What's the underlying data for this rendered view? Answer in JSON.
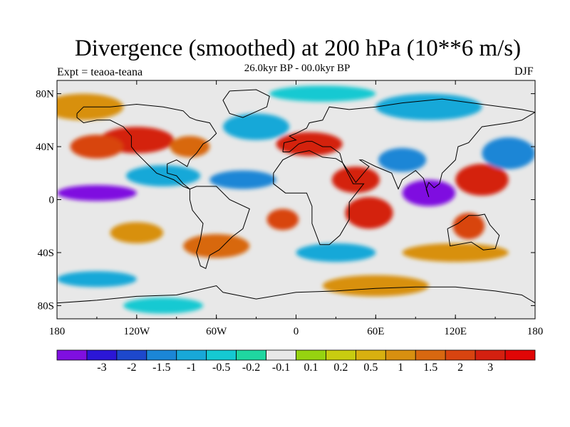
{
  "title": "Divergence (smoothed) at 200 hPa (10**6 m/s)",
  "subtitle": "26.0kyr BP - 00.0kyr BP",
  "left_label": "Expt = teaoa-teana",
  "right_label": "DJF",
  "map": {
    "lon_range": [
      -180,
      180
    ],
    "lat_range": [
      -90,
      90
    ],
    "x_ticks": [
      {
        "lon": -180,
        "label": "180"
      },
      {
        "lon": -120,
        "label": "120W"
      },
      {
        "lon": -60,
        "label": "60W"
      },
      {
        "lon": 0,
        "label": "0"
      },
      {
        "lon": 60,
        "label": "60E"
      },
      {
        "lon": 120,
        "label": "120E"
      },
      {
        "lon": 180,
        "label": "180"
      }
    ],
    "y_ticks": [
      {
        "lat": 80,
        "label": "80N"
      },
      {
        "lat": 40,
        "label": "40N"
      },
      {
        "lat": 0,
        "label": "0"
      },
      {
        "lat": -40,
        "label": "40S"
      },
      {
        "lat": -80,
        "label": "80S"
      }
    ]
  },
  "colorbar": {
    "colors": [
      "#7f0fe0",
      "#2b16d6",
      "#1d48cc",
      "#1b86d6",
      "#18a8d8",
      "#15c9d2",
      "#1fd6a0",
      "#e8e8e8",
      "#96d310",
      "#c8cc10",
      "#d8b010",
      "#d89010",
      "#d86810",
      "#d84410",
      "#d42010",
      "#e00606"
    ],
    "labels": [
      "-3",
      "-2",
      "-1.5",
      "-1",
      "-0.5",
      "-0.2",
      "-0.1",
      "0.1",
      "0.2",
      "0.5",
      "1",
      "1.5",
      "2",
      "3"
    ]
  },
  "blobs": [
    {
      "lon": -120,
      "lat": 45,
      "rx": 28,
      "ry": 10,
      "c": 14
    },
    {
      "lon": -150,
      "lat": 40,
      "rx": 20,
      "ry": 9,
      "c": 13
    },
    {
      "lon": -80,
      "lat": 40,
      "rx": 15,
      "ry": 8,
      "c": 12
    },
    {
      "lon": 10,
      "lat": 42,
      "rx": 25,
      "ry": 9,
      "c": 14
    },
    {
      "lon": -30,
      "lat": 55,
      "rx": 25,
      "ry": 10,
      "c": 4
    },
    {
      "lon": -150,
      "lat": 5,
      "rx": 30,
      "ry": 6,
      "c": 0
    },
    {
      "lon": -100,
      "lat": 18,
      "rx": 28,
      "ry": 8,
      "c": 4
    },
    {
      "lon": -40,
      "lat": 15,
      "rx": 25,
      "ry": 7,
      "c": 3
    },
    {
      "lon": -120,
      "lat": -25,
      "rx": 20,
      "ry": 8,
      "c": 11
    },
    {
      "lon": -10,
      "lat": -15,
      "rx": 12,
      "ry": 8,
      "c": 13
    },
    {
      "lon": 45,
      "lat": 15,
      "rx": 18,
      "ry": 10,
      "c": 14
    },
    {
      "lon": 55,
      "lat": -10,
      "rx": 18,
      "ry": 12,
      "c": 14
    },
    {
      "lon": 100,
      "lat": 5,
      "rx": 20,
      "ry": 10,
      "c": 0
    },
    {
      "lon": 140,
      "lat": 15,
      "rx": 20,
      "ry": 12,
      "c": 14
    },
    {
      "lon": 80,
      "lat": 30,
      "rx": 18,
      "ry": 9,
      "c": 3
    },
    {
      "lon": 130,
      "lat": -20,
      "rx": 12,
      "ry": 10,
      "c": 13
    },
    {
      "lon": 160,
      "lat": 35,
      "rx": 20,
      "ry": 12,
      "c": 3
    },
    {
      "lon": -60,
      "lat": -35,
      "rx": 25,
      "ry": 9,
      "c": 12
    },
    {
      "lon": 30,
      "lat": -40,
      "rx": 30,
      "ry": 7,
      "c": 4
    },
    {
      "lon": 120,
      "lat": -40,
      "rx": 40,
      "ry": 7,
      "c": 11
    },
    {
      "lon": -150,
      "lat": -60,
      "rx": 30,
      "ry": 6,
      "c": 4
    },
    {
      "lon": 60,
      "lat": -65,
      "rx": 40,
      "ry": 8,
      "c": 11
    },
    {
      "lon": -100,
      "lat": -80,
      "rx": 30,
      "ry": 6,
      "c": 5
    },
    {
      "lon": 100,
      "lat": 70,
      "rx": 40,
      "ry": 10,
      "c": 4
    },
    {
      "lon": -160,
      "lat": 70,
      "rx": 30,
      "ry": 10,
      "c": 11
    },
    {
      "lon": 20,
      "lat": 80,
      "rx": 40,
      "ry": 6,
      "c": 5
    }
  ],
  "coastlines": [
    {
      "name": "north-america",
      "pts": [
        [
          -165,
          65
        ],
        [
          -160,
          70
        ],
        [
          -140,
          70
        ],
        [
          -120,
          72
        ],
        [
          -100,
          70
        ],
        [
          -85,
          67
        ],
        [
          -80,
          62
        ],
        [
          -75,
          60
        ],
        [
          -65,
          58
        ],
        [
          -60,
          50
        ],
        [
          -65,
          45
        ],
        [
          -70,
          42
        ],
        [
          -75,
          35
        ],
        [
          -80,
          30
        ],
        [
          -82,
          25
        ],
        [
          -90,
          30
        ],
        [
          -97,
          27
        ],
        [
          -97,
          20
        ],
        [
          -90,
          18
        ],
        [
          -85,
          12
        ],
        [
          -80,
          8
        ],
        [
          -85,
          10
        ],
        [
          -92,
          15
        ],
        [
          -105,
          20
        ],
        [
          -110,
          25
        ],
        [
          -115,
          30
        ],
        [
          -120,
          35
        ],
        [
          -124,
          40
        ],
        [
          -124,
          48
        ],
        [
          -130,
          55
        ],
        [
          -140,
          60
        ],
        [
          -150,
          60
        ],
        [
          -160,
          58
        ],
        [
          -165,
          62
        ],
        [
          -165,
          65
        ]
      ]
    },
    {
      "name": "south-america",
      "pts": [
        [
          -80,
          8
        ],
        [
          -75,
          10
        ],
        [
          -60,
          10
        ],
        [
          -50,
          0
        ],
        [
          -35,
          -7
        ],
        [
          -40,
          -22
        ],
        [
          -48,
          -28
        ],
        [
          -58,
          -38
        ],
        [
          -65,
          -42
        ],
        [
          -68,
          -52
        ],
        [
          -72,
          -50
        ],
        [
          -75,
          -40
        ],
        [
          -72,
          -30
        ],
        [
          -70,
          -18
        ],
        [
          -78,
          -8
        ],
        [
          -80,
          0
        ],
        [
          -80,
          8
        ]
      ]
    },
    {
      "name": "greenland",
      "pts": [
        [
          -50,
          82
        ],
        [
          -30,
          83
        ],
        [
          -20,
          78
        ],
        [
          -22,
          70
        ],
        [
          -40,
          62
        ],
        [
          -50,
          65
        ],
        [
          -55,
          75
        ],
        [
          -50,
          82
        ]
      ]
    },
    {
      "name": "africa",
      "pts": [
        [
          -17,
          20
        ],
        [
          -10,
          30
        ],
        [
          0,
          35
        ],
        [
          10,
          37
        ],
        [
          20,
          32
        ],
        [
          30,
          31
        ],
        [
          35,
          28
        ],
        [
          43,
          12
        ],
        [
          51,
          12
        ],
        [
          40,
          -2
        ],
        [
          40,
          -15
        ],
        [
          33,
          -27
        ],
        [
          25,
          -34
        ],
        [
          18,
          -34
        ],
        [
          12,
          -18
        ],
        [
          12,
          -5
        ],
        [
          8,
          5
        ],
        [
          -8,
          5
        ],
        [
          -17,
          12
        ],
        [
          -17,
          20
        ]
      ]
    },
    {
      "name": "eurasia",
      "pts": [
        [
          -10,
          36
        ],
        [
          -9,
          43
        ],
        [
          0,
          45
        ],
        [
          -5,
          48
        ],
        [
          0,
          50
        ],
        [
          8,
          54
        ],
        [
          10,
          58
        ],
        [
          20,
          60
        ],
        [
          25,
          70
        ],
        [
          40,
          68
        ],
        [
          60,
          70
        ],
        [
          80,
          73
        ],
        [
          110,
          76
        ],
        [
          140,
          72
        ],
        [
          170,
          68
        ],
        [
          180,
          66
        ],
        [
          170,
          60
        ],
        [
          160,
          58
        ],
        [
          140,
          55
        ],
        [
          130,
          43
        ],
        [
          122,
          40
        ],
        [
          120,
          30
        ],
        [
          110,
          20
        ],
        [
          108,
          12
        ],
        [
          104,
          9
        ],
        [
          100,
          13
        ],
        [
          98,
          8
        ],
        [
          100,
          2
        ],
        [
          96,
          16
        ],
        [
          90,
          22
        ],
        [
          80,
          15
        ],
        [
          77,
          8
        ],
        [
          72,
          20
        ],
        [
          60,
          25
        ],
        [
          56,
          27
        ],
        [
          50,
          30
        ],
        [
          48,
          30
        ],
        [
          55,
          25
        ],
        [
          45,
          13
        ],
        [
          35,
          28
        ],
        [
          33,
          35
        ],
        [
          26,
          40
        ],
        [
          20,
          40
        ],
        [
          12,
          44
        ],
        [
          8,
          44
        ],
        [
          2,
          42
        ],
        [
          -5,
          36
        ],
        [
          -10,
          36
        ]
      ]
    },
    {
      "name": "australia",
      "pts": [
        [
          114,
          -22
        ],
        [
          122,
          -18
        ],
        [
          130,
          -12
        ],
        [
          137,
          -12
        ],
        [
          142,
          -11
        ],
        [
          146,
          -19
        ],
        [
          153,
          -27
        ],
        [
          150,
          -37
        ],
        [
          141,
          -38
        ],
        [
          132,
          -32
        ],
        [
          116,
          -35
        ],
        [
          114,
          -22
        ]
      ]
    },
    {
      "name": "antarctica",
      "pts": [
        [
          -180,
          -78
        ],
        [
          -150,
          -76
        ],
        [
          -120,
          -73
        ],
        [
          -90,
          -72
        ],
        [
          -60,
          -65
        ],
        [
          -55,
          -70
        ],
        [
          -30,
          -75
        ],
        [
          0,
          -70
        ],
        [
          30,
          -69
        ],
        [
          60,
          -67
        ],
        [
          90,
          -66
        ],
        [
          120,
          -66
        ],
        [
          150,
          -69
        ],
        [
          170,
          -72
        ],
        [
          180,
          -78
        ]
      ]
    }
  ]
}
